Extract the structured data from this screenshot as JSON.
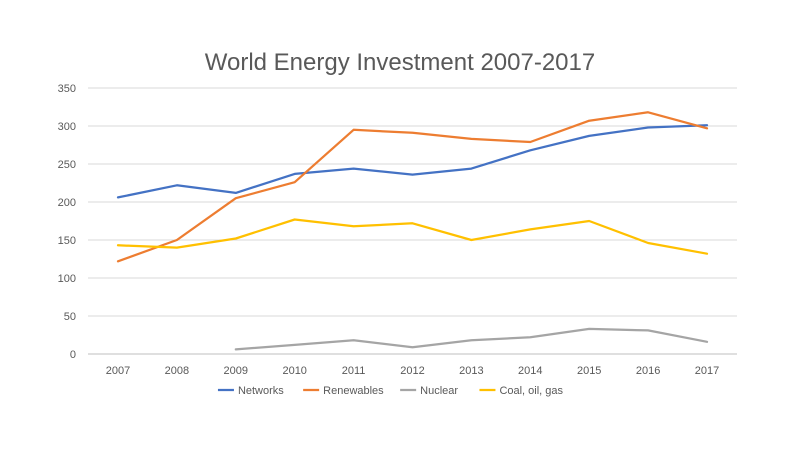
{
  "chart_data": {
    "type": "line",
    "title": "World Energy Investment 2007-2017",
    "xlabel": "",
    "ylabel": "",
    "ylim": [
      0,
      350
    ],
    "yticks": [
      0,
      50,
      100,
      150,
      200,
      250,
      300,
      350
    ],
    "grid": true,
    "legend_position": "bottom",
    "categories": [
      "2007",
      "2008",
      "2009",
      "2010",
      "2011",
      "2012",
      "2013",
      "2014",
      "2015",
      "2016",
      "2017"
    ],
    "series": [
      {
        "name": "Networks",
        "color": "#4472c4",
        "values": [
          206,
          222,
          212,
          237,
          244,
          236,
          244,
          268,
          287,
          298,
          301
        ]
      },
      {
        "name": "Renewables",
        "color": "#ed7d31",
        "values": [
          122,
          150,
          205,
          226,
          295,
          291,
          283,
          279,
          307,
          318,
          297
        ]
      },
      {
        "name": "Nuclear",
        "color": "#a5a5a5",
        "values": [
          null,
          null,
          6,
          12,
          18,
          9,
          18,
          22,
          33,
          31,
          16
        ]
      },
      {
        "name": "Coal, oil, gas",
        "color": "#ffc000",
        "values": [
          143,
          140,
          152,
          177,
          168,
          172,
          150,
          164,
          175,
          146,
          132
        ]
      }
    ]
  }
}
